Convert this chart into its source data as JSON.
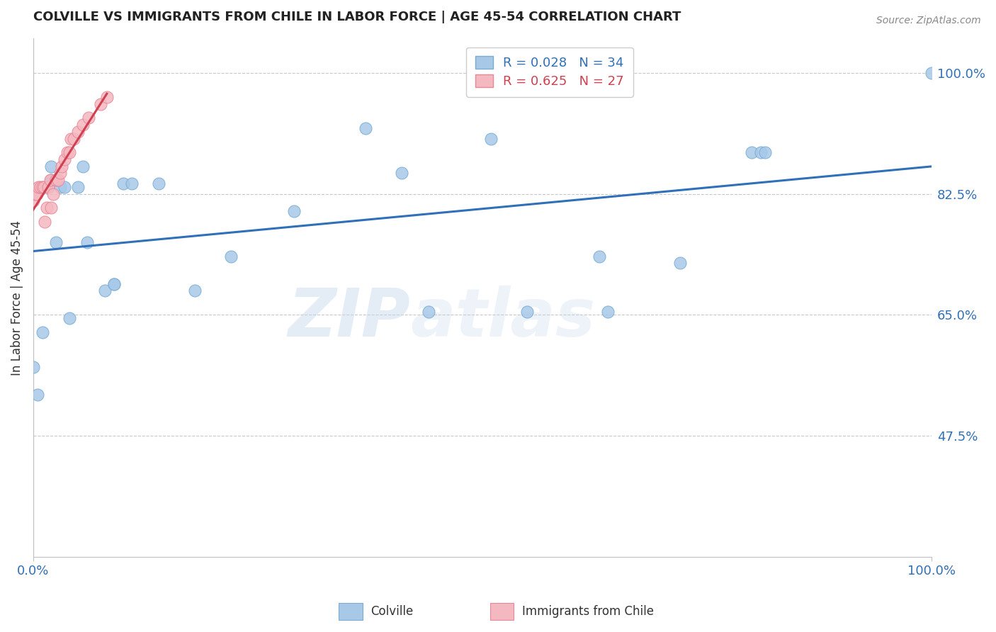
{
  "title": "COLVILLE VS IMMIGRANTS FROM CHILE IN LABOR FORCE | AGE 45-54 CORRELATION CHART",
  "source": "Source: ZipAtlas.com",
  "ylabel": "In Labor Force | Age 45-54",
  "xlim": [
    0.0,
    1.0
  ],
  "ylim": [
    0.3,
    1.05
  ],
  "yticks": [
    0.475,
    0.65,
    0.825,
    1.0
  ],
  "ytick_labels": [
    "47.5%",
    "65.0%",
    "82.5%",
    "100.0%"
  ],
  "xtick_labels": [
    "0.0%",
    "100.0%"
  ],
  "xticks": [
    0.0,
    1.0
  ],
  "colville_R": 0.028,
  "colville_N": 34,
  "chile_R": 0.625,
  "chile_N": 27,
  "colville_color": "#a8c8e8",
  "chile_color": "#f4b8c0",
  "colville_edge_color": "#7aadd4",
  "chile_edge_color": "#e88898",
  "trend_colville_color": "#3070b8",
  "trend_chile_color": "#d04050",
  "colville_x": [
    0.0,
    0.005,
    0.01,
    0.015,
    0.02,
    0.02,
    0.025,
    0.03,
    0.035,
    0.04,
    0.05,
    0.055,
    0.06,
    0.08,
    0.09,
    0.09,
    0.1,
    0.11,
    0.14,
    0.18,
    0.22,
    0.29,
    0.37,
    0.41,
    0.44,
    0.51,
    0.55,
    0.63,
    0.64,
    0.72,
    0.8,
    0.81,
    0.815,
    1.0
  ],
  "colville_y": [
    0.575,
    0.535,
    0.625,
    0.835,
    0.845,
    0.865,
    0.755,
    0.835,
    0.835,
    0.645,
    0.835,
    0.865,
    0.755,
    0.685,
    0.695,
    0.695,
    0.84,
    0.84,
    0.84,
    0.685,
    0.735,
    0.8,
    0.92,
    0.855,
    0.655,
    0.905,
    0.655,
    0.735,
    0.655,
    0.725,
    0.885,
    0.885,
    0.885,
    1.0
  ],
  "chile_x": [
    0.0,
    0.002,
    0.004,
    0.006,
    0.008,
    0.01,
    0.012,
    0.013,
    0.015,
    0.017,
    0.019,
    0.02,
    0.022,
    0.025,
    0.028,
    0.03,
    0.032,
    0.035,
    0.038,
    0.04,
    0.042,
    0.045,
    0.05,
    0.055,
    0.062,
    0.075,
    0.082
  ],
  "chile_y": [
    0.815,
    0.825,
    0.825,
    0.835,
    0.835,
    0.835,
    0.835,
    0.785,
    0.805,
    0.835,
    0.845,
    0.805,
    0.825,
    0.845,
    0.845,
    0.855,
    0.865,
    0.875,
    0.885,
    0.885,
    0.905,
    0.905,
    0.915,
    0.925,
    0.935,
    0.955,
    0.965
  ],
  "legend_colville": "Colville",
  "legend_chile": "Immigrants from Chile",
  "watermark_zip": "ZIP",
  "watermark_atlas": "atlas",
  "background_color": "#ffffff",
  "grid_color": "#c8c8c8",
  "axis_color": "#c0c0c0"
}
